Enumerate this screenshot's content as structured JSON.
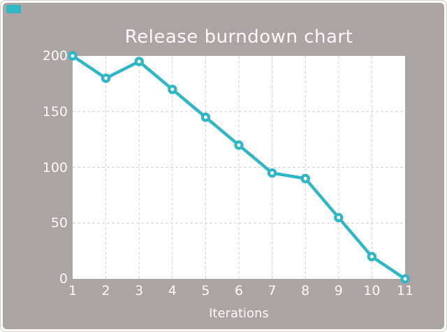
{
  "frame": {
    "chip_color": "#2fb7c3"
  },
  "chart_data": {
    "type": "line",
    "title": "Release burndown chart",
    "xlabel": "Iterations",
    "ylabel": "",
    "x": [
      1,
      2,
      3,
      4,
      5,
      6,
      7,
      8,
      9,
      10,
      11
    ],
    "values": [
      200,
      180,
      195,
      170,
      145,
      120,
      95,
      90,
      55,
      20,
      0
    ],
    "xticks": [
      "1",
      "2",
      "3",
      "4",
      "5",
      "6",
      "7",
      "8",
      "9",
      "10",
      "11"
    ],
    "yticks": [
      "0",
      "50",
      "100",
      "150",
      "200"
    ],
    "ytick_values": [
      0,
      50,
      100,
      150,
      200
    ],
    "xlim": [
      1,
      11
    ],
    "ylim": [
      0,
      200
    ],
    "grid": "dashed",
    "legend_position": "none",
    "colors": {
      "line": "#2fb7c3",
      "marker_fill": "#ffffff",
      "plot_background": "#ffffff",
      "canvas_background": "#aca4a2",
      "gridline": "#d4d2d1",
      "text": "#fcfbfa"
    }
  }
}
